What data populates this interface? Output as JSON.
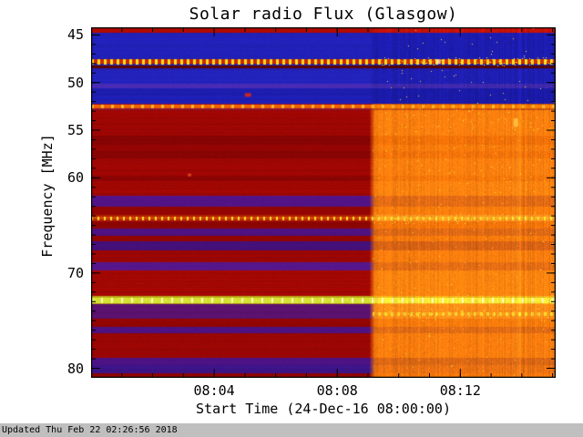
{
  "title": "Solar radio Flux (Glasgow)",
  "footer": {
    "updated": "Updated Thu Feb 22 02:26:56 2018"
  },
  "colors": {
    "background": "#ffffff",
    "text": "#000000",
    "frame": "#000000",
    "footer_bg": "#bfbfbf",
    "colormap_low": "#1c1cae",
    "colormap_mid": "#9e0603",
    "colormap_high": "#fd7e0e",
    "colormap_peak": "#ffe838"
  },
  "chart_data": {
    "type": "heatmap",
    "title": "Solar radio Flux (Glasgow)",
    "xlabel": "Start Time (24-Dec-16 08:00:00)",
    "ylabel": "Frequency [MHz]",
    "x_minutes_range": [
      0,
      15.1
    ],
    "x_ticks": [
      {
        "minute": 4,
        "label": "08:04"
      },
      {
        "minute": 8,
        "label": "08:08"
      },
      {
        "minute": 12,
        "label": "08:12"
      }
    ],
    "x_minor_step_minutes": 1,
    "freq_range": [
      44.2,
      81.0
    ],
    "y_ticks": [
      {
        "freq": 45,
        "label": "45"
      },
      {
        "freq": 50,
        "label": "50"
      },
      {
        "freq": 55,
        "label": "55"
      },
      {
        "freq": 60,
        "label": "60"
      },
      {
        "freq": 70,
        "label": "70"
      },
      {
        "freq": 80,
        "label": "80"
      }
    ],
    "y_minor_step_mhz": 1,
    "y_axis_inverted": true,
    "split_minute": 9.12,
    "bands": [
      {
        "f": [
          44.2,
          44.75
        ],
        "left": "#b00a00",
        "right": "#c41208"
      },
      {
        "f": [
          44.75,
          47.5
        ],
        "left": "#2121b8",
        "right": "#1c1cae"
      },
      {
        "f": [
          47.5,
          48.15
        ],
        "left": "#28289c",
        "right": "#24249a"
      },
      {
        "f": [
          48.15,
          48.55
        ],
        "left": "#1f1fae",
        "right": "#1b1ba8"
      },
      {
        "f": [
          48.55,
          50.1
        ],
        "left": "#2323bc",
        "right": "#1e1eb0"
      },
      {
        "f": [
          50.1,
          50.65
        ],
        "left": "#4a2cb8",
        "right": "#3e28aa"
      },
      {
        "f": [
          50.65,
          52.2
        ],
        "left": "#1e1eb2",
        "right": "#1a1aa6"
      },
      {
        "f": [
          52.2,
          52.9
        ],
        "left": "#8a1430",
        "right": "#c85410"
      },
      {
        "f": [
          52.9,
          55.6
        ],
        "left": "#9e0603",
        "right": "#fd7e0e"
      },
      {
        "f": [
          55.6,
          56.5
        ],
        "left": "#850404",
        "right": "#f07008"
      },
      {
        "f": [
          56.5,
          57.2
        ],
        "left": "#990503",
        "right": "#f97a0c"
      },
      {
        "f": [
          57.2,
          58.0
        ],
        "left": "#890404",
        "right": "#f2720a"
      },
      {
        "f": [
          58.0,
          59.8
        ],
        "left": "#9d0603",
        "right": "#fd7e0e"
      },
      {
        "f": [
          59.8,
          60.4
        ],
        "left": "#8b0404",
        "right": "#f5760a"
      },
      {
        "f": [
          60.4,
          61.9
        ],
        "left": "#a10703",
        "right": "#ff810f"
      },
      {
        "f": [
          61.9,
          63.0
        ],
        "left": "#531488",
        "right": "#e06a14"
      },
      {
        "f": [
          63.0,
          63.9
        ],
        "left": "#950503",
        "right": "#fb7c0c"
      },
      {
        "f": [
          63.9,
          64.6
        ],
        "left": "#aa2006",
        "right": "#ff9020"
      },
      {
        "f": [
          64.6,
          65.3
        ],
        "left": "#8d0503",
        "right": "#f3740a"
      },
      {
        "f": [
          65.3,
          66.1
        ],
        "left": "#4d1280",
        "right": "#dc6814"
      },
      {
        "f": [
          66.1,
          66.7
        ],
        "left": "#910503",
        "right": "#f7780c"
      },
      {
        "f": [
          66.7,
          67.6
        ],
        "left": "#45107a",
        "right": "#d66214"
      },
      {
        "f": [
          67.6,
          68.9
        ],
        "left": "#9b0603",
        "right": "#fb7c0e"
      },
      {
        "f": [
          68.9,
          69.7
        ],
        "left": "#551688",
        "right": "#e26c14"
      },
      {
        "f": [
          69.7,
          72.4
        ],
        "left": "#a20703",
        "right": "#ff830f"
      },
      {
        "f": [
          72.4,
          73.3
        ],
        "left": "#b8a015",
        "right": "#f0b018"
      },
      {
        "f": [
          73.3,
          74.8
        ],
        "left": "#5c1270",
        "right": "#ff8c18"
      },
      {
        "f": [
          74.8,
          75.6
        ],
        "left": "#930503",
        "right": "#f97a0c"
      },
      {
        "f": [
          75.6,
          76.3
        ],
        "left": "#4e1282",
        "right": "#de6a14"
      },
      {
        "f": [
          76.3,
          78.9
        ],
        "left": "#990603",
        "right": "#fb7c0e"
      },
      {
        "f": [
          78.9,
          79.7
        ],
        "left": "#4a1280",
        "right": "#d86614"
      },
      {
        "f": [
          79.7,
          80.5
        ],
        "left": "#3d1488",
        "right": "#e87012"
      },
      {
        "f": [
          80.5,
          81.0
        ],
        "left": "#8b0503",
        "right": "#f5760c"
      }
    ],
    "lines": [
      {
        "freq": 47.8,
        "h": 0.45,
        "left": "#c82800",
        "right": "#d03000",
        "dash": {
          "color": "#ffd820",
          "on": 3,
          "off": 4,
          "h_scale": 1.3
        }
      },
      {
        "freq": 48.33,
        "h": 0.28,
        "left": "#5c0404",
        "right": "#540404"
      },
      {
        "freq": 52.55,
        "h": 0.4,
        "left": "#f06000",
        "right": "#ff7c00",
        "dash": {
          "color": "#ffb428",
          "on": 3,
          "off": 8,
          "h_scale": 1.0
        }
      },
      {
        "freq": 64.25,
        "h": 0.33,
        "left": "#d04400",
        "right": "#ffa820",
        "dash": {
          "color": "#ffdc30",
          "on": 2,
          "off": 5,
          "h_scale": 1.2
        }
      },
      {
        "freq": 72.85,
        "h": 0.55,
        "left": "#d8e434",
        "right": "#ffe838",
        "dash": {
          "color": "#fffcb0",
          "on": 2,
          "off": 9,
          "h_scale": 1.0
        }
      },
      {
        "freq": 74.3,
        "h": 0.3,
        "side": "right",
        "right": "#ff9820",
        "dash": {
          "color": "#ffd028",
          "on": 3,
          "off": 4,
          "h_scale": 1.3
        }
      }
    ],
    "speckle_rows": [
      {
        "f": [
          47.4,
          48.2
        ],
        "p": 0.05
      },
      {
        "f": [
          52.9,
          55.3
        ],
        "p": 0.012
      },
      {
        "f": [
          58.0,
          62.0
        ],
        "p": 0.006
      },
      {
        "f": [
          63.8,
          64.8
        ],
        "p": 0.03
      },
      {
        "f": [
          73.6,
          74.8
        ],
        "p": 0.035
      }
    ],
    "blobs": [
      {
        "minute": 5.1,
        "freq": 51.3,
        "w": 7,
        "h": 4,
        "color": "#e02810",
        "alpha": 0.85
      },
      {
        "minute": 3.2,
        "freq": 59.7,
        "w": 4,
        "h": 3,
        "color": "#e84c20",
        "alpha": 0.8
      },
      {
        "minute": 13.8,
        "freq": 54.2,
        "w": 5,
        "h": 9,
        "color": "#ffc342",
        "alpha": 0.9
      },
      {
        "minute": 13.82,
        "freq": 53.0,
        "w": 3,
        "h": "full",
        "color": "#ffd864",
        "alpha": 0.12
      },
      {
        "minute": 11.3,
        "freq": 47.8,
        "w": 4,
        "h": 5,
        "color": "#ffffff",
        "alpha": 0.65
      }
    ]
  }
}
